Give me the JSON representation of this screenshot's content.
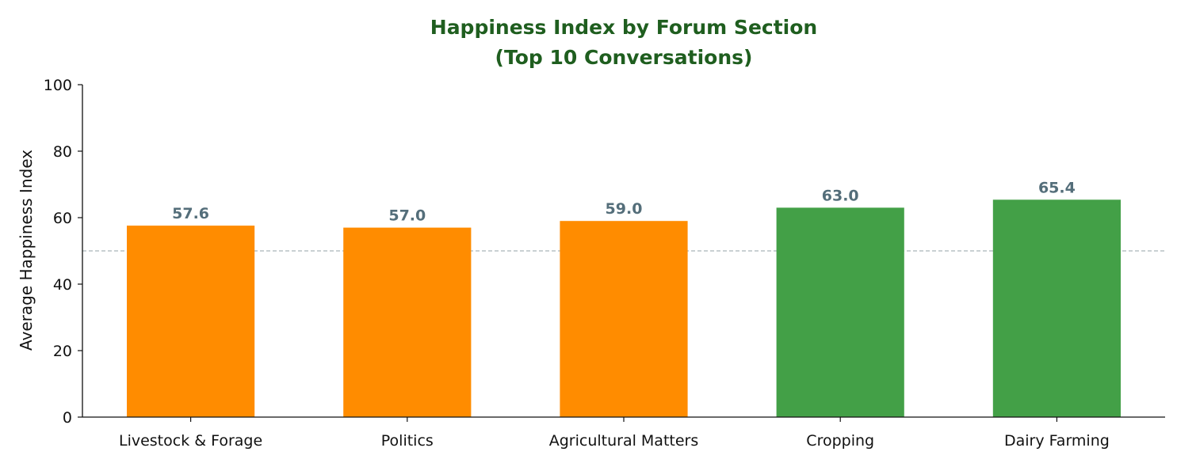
{
  "chart_data": {
    "type": "bar",
    "title": "Happiness Index by Forum Section",
    "subtitle": "(Top 10 Conversations)",
    "xlabel": "",
    "ylabel": "Average Happiness Index",
    "ylim": [
      0,
      100
    ],
    "yticks": [
      "0",
      "20",
      "40",
      "60",
      "80",
      "100"
    ],
    "categories": [
      "Livestock & Forage",
      "Politics",
      "Agricultural Matters",
      "Cropping",
      "Dairy Farming"
    ],
    "values": [
      57.6,
      57.0,
      59.0,
      63.0,
      65.4
    ],
    "value_labels": [
      "57.6",
      "57.0",
      "59.0",
      "63.0",
      "65.4"
    ],
    "reference_line": 50,
    "threshold": 60,
    "colors": {
      "below_threshold": "#ff8c00",
      "above_threshold": "#43a047",
      "reference_line": "#a9b4b9",
      "title": "#1f5e1f",
      "value_label": "#546e7a"
    },
    "grid": false,
    "legend": "none"
  }
}
